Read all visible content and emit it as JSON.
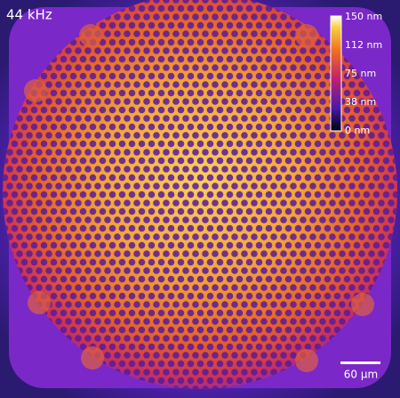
{
  "image": {
    "frequency_label": "44 kHz",
    "colorbar": {
      "labels": [
        "150 nm",
        "112 nm",
        "75 nm",
        "38 nm",
        "0 nm"
      ]
    },
    "scale_bar": {
      "label": "60 µm"
    }
  }
}
